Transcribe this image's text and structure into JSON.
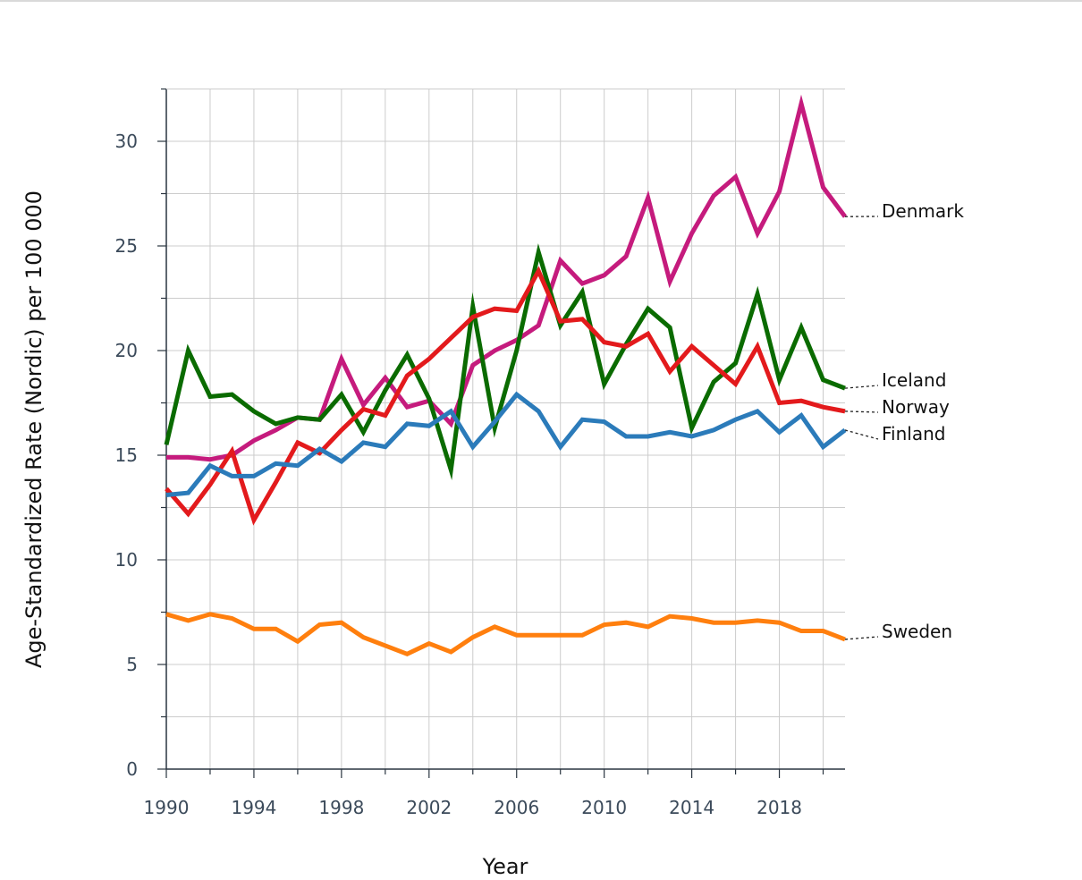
{
  "chart_data": {
    "type": "line",
    "title": "",
    "xlabel": "Year",
    "ylabel": "Age-Standardized Rate (Nordic) per 100 000",
    "xlim": [
      1990,
      2021
    ],
    "ylim": [
      0,
      32.5
    ],
    "x_ticks": [
      1990,
      1994,
      1998,
      2002,
      2006,
      2010,
      2014,
      2018
    ],
    "y_ticks": [
      0,
      5,
      10,
      15,
      20,
      25,
      30
    ],
    "grid": true,
    "legend": "labels at line ends (right)",
    "x": [
      1990,
      1991,
      1992,
      1993,
      1994,
      1995,
      1996,
      1997,
      1998,
      1999,
      2000,
      2001,
      2002,
      2003,
      2004,
      2005,
      2006,
      2007,
      2008,
      2009,
      2010,
      2011,
      2012,
      2013,
      2014,
      2015,
      2016,
      2017,
      2018,
      2019,
      2020,
      2021
    ],
    "series": [
      {
        "name": "Denmark",
        "color": "#c51b7d",
        "values": [
          14.9,
          14.9,
          14.8,
          15.0,
          15.7,
          16.2,
          16.8,
          16.7,
          19.6,
          17.4,
          18.7,
          17.3,
          17.6,
          16.5,
          19.3,
          20.0,
          20.5,
          21.2,
          24.3,
          23.2,
          23.6,
          24.5,
          27.3,
          23.3,
          25.6,
          27.4,
          28.3,
          25.6,
          27.6,
          31.8,
          27.8,
          26.4
        ]
      },
      {
        "name": "Iceland",
        "color": "#0a6b00",
        "values": [
          15.5,
          20.0,
          17.8,
          17.9,
          17.1,
          16.5,
          16.8,
          16.7,
          17.9,
          16.1,
          18.1,
          19.8,
          17.7,
          14.3,
          22.1,
          16.3,
          20.0,
          24.7,
          21.2,
          22.8,
          18.4,
          20.3,
          22.0,
          21.1,
          16.3,
          18.5,
          19.4,
          22.7,
          18.6,
          21.1,
          18.6,
          18.2
        ]
      },
      {
        "name": "Norway",
        "color": "#e31a1c",
        "values": [
          13.4,
          12.2,
          13.6,
          15.2,
          11.9,
          13.7,
          15.6,
          15.1,
          16.2,
          17.2,
          16.9,
          18.8,
          19.6,
          20.6,
          21.6,
          22.0,
          21.9,
          23.8,
          21.4,
          21.5,
          20.4,
          20.2,
          20.8,
          19.0,
          20.2,
          19.3,
          18.4,
          20.2,
          17.5,
          17.6,
          17.3,
          17.1
        ]
      },
      {
        "name": "Finland",
        "color": "#2b7bba",
        "values": [
          13.1,
          13.2,
          14.5,
          14.0,
          14.0,
          14.6,
          14.5,
          15.3,
          14.7,
          15.6,
          15.4,
          16.5,
          16.4,
          17.1,
          15.4,
          16.6,
          17.9,
          17.1,
          15.4,
          16.7,
          16.6,
          15.9,
          15.9,
          16.1,
          15.9,
          16.2,
          16.7,
          17.1,
          16.1,
          16.9,
          15.4,
          16.2
        ]
      },
      {
        "name": "Sweden",
        "color": "#ff7f0e",
        "values": [
          7.4,
          7.1,
          7.4,
          7.2,
          6.7,
          6.7,
          6.1,
          6.9,
          7.0,
          6.3,
          5.9,
          5.5,
          6.0,
          5.6,
          6.3,
          6.8,
          6.4,
          6.4,
          6.4,
          6.4,
          6.9,
          7.0,
          6.8,
          7.3,
          7.2,
          7.0,
          7.0,
          7.1,
          7.0,
          6.6,
          6.6,
          6.2
        ]
      }
    ]
  }
}
